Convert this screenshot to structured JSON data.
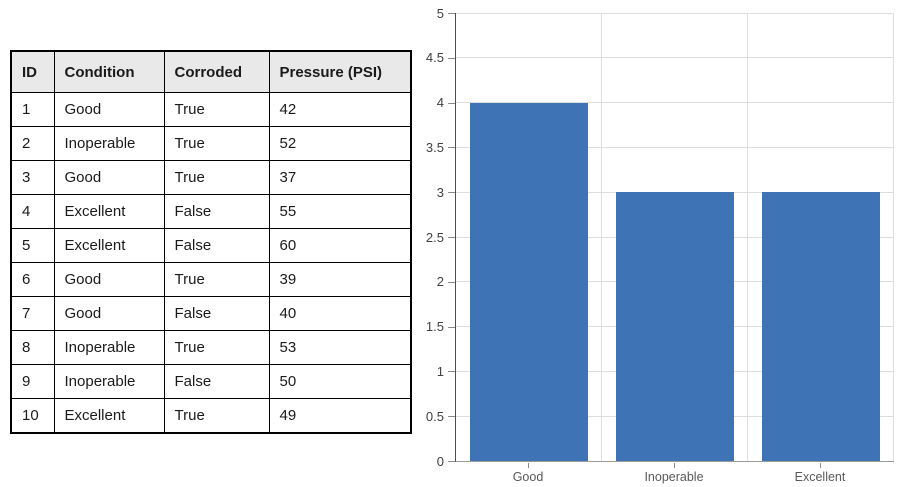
{
  "table": {
    "headers": [
      "ID",
      "Condition",
      "Corroded",
      "Pressure (PSI)"
    ],
    "rows": [
      [
        "1",
        "Good",
        "True",
        "42"
      ],
      [
        "2",
        "Inoperable",
        "True",
        "52"
      ],
      [
        "3",
        "Good",
        "True",
        "37"
      ],
      [
        "4",
        "Excellent",
        "False",
        "55"
      ],
      [
        "5",
        "Excellent",
        "False",
        "60"
      ],
      [
        "6",
        "Good",
        "True",
        "39"
      ],
      [
        "7",
        "Good",
        "False",
        "40"
      ],
      [
        "8",
        "Inoperable",
        "True",
        "53"
      ],
      [
        "9",
        "Inoperable",
        "False",
        "50"
      ],
      [
        "10",
        "Excellent",
        "True",
        "49"
      ]
    ]
  },
  "chart_data": {
    "type": "bar",
    "categories": [
      "Good",
      "Inoperable",
      "Excellent"
    ],
    "values": [
      4,
      3,
      3
    ],
    "title": "",
    "xlabel": "",
    "ylabel": "",
    "ylim": [
      0,
      5
    ],
    "ytick_step": 0.5,
    "ytick_labels": [
      "0",
      "0.5",
      "1",
      "1.5",
      "2",
      "2.5",
      "3",
      "3.5",
      "4",
      "4.5",
      "5"
    ],
    "grid": true,
    "legend": "none",
    "colors": {
      "bar": "#3E73B5",
      "gridline": "#dedede",
      "x_axis": "#9a9a9a",
      "y_axis": "#4d4d4d",
      "tick": "#8c8c8c",
      "y_tick_label": "#404040",
      "x_category_label": "#595959"
    }
  }
}
